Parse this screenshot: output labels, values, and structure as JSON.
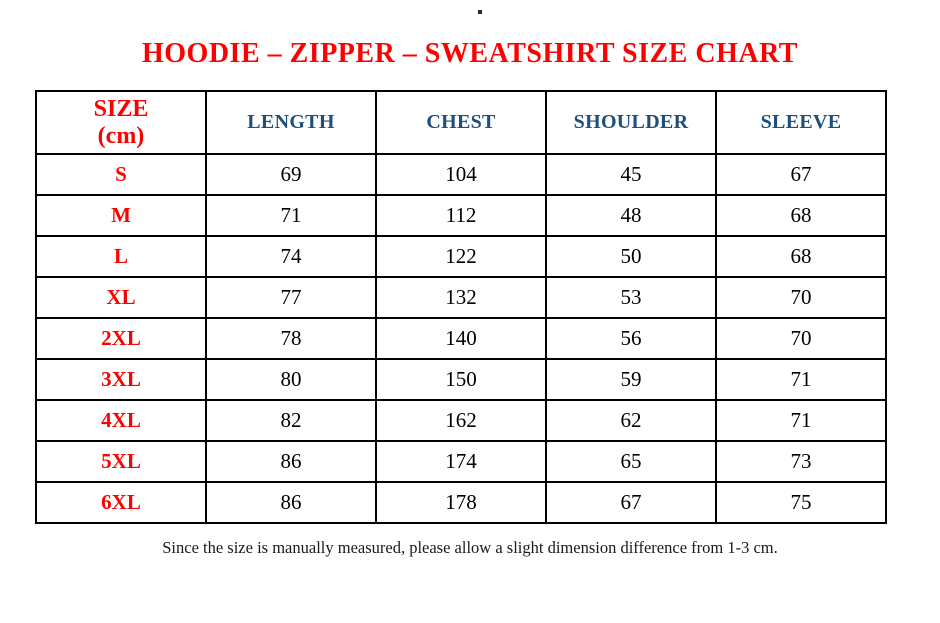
{
  "top_mark": "",
  "title": "HOODIE – ZIPPER – SWEATSHIRT SIZE CHART",
  "table": {
    "header": {
      "size_line1": "SIZE",
      "size_line2": "(cm)",
      "measure_columns": [
        "LENGTH",
        "CHEST",
        "SHOULDER",
        "SLEEVE"
      ]
    },
    "rows": [
      {
        "size": "S",
        "values": [
          69,
          104,
          45,
          67
        ]
      },
      {
        "size": "M",
        "values": [
          71,
          112,
          48,
          68
        ]
      },
      {
        "size": "L",
        "values": [
          74,
          122,
          50,
          68
        ]
      },
      {
        "size": "XL",
        "values": [
          77,
          132,
          53,
          70
        ]
      },
      {
        "size": "2XL",
        "values": [
          78,
          140,
          56,
          70
        ]
      },
      {
        "size": "3XL",
        "values": [
          80,
          150,
          59,
          71
        ]
      },
      {
        "size": "4XL",
        "values": [
          82,
          162,
          62,
          71
        ]
      },
      {
        "size": "5XL",
        "values": [
          86,
          174,
          65,
          73
        ]
      },
      {
        "size": "6XL",
        "values": [
          86,
          178,
          67,
          75
        ]
      }
    ]
  },
  "footer_note": "Since the size is manually measured, please allow a slight dimension difference from 1-3 cm.",
  "colors": {
    "title_red": "#ff0000",
    "size_label_red": "#ff0000",
    "header_blue": "#1f4e79",
    "value_black": "#000000",
    "border_black": "#000000",
    "background": "#ffffff"
  }
}
